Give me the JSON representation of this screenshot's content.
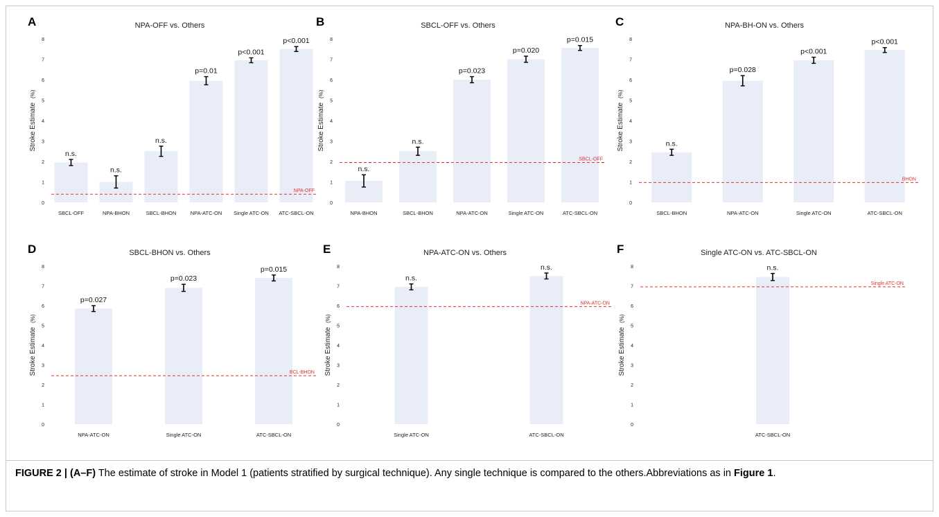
{
  "colors": {
    "bar": "#e8edf8",
    "reference_line": "#e03030",
    "error_bar": "#000000",
    "axis_text": "#222222"
  },
  "chart_data": [
    {
      "panel": "A",
      "type": "bar",
      "title": "NPA-OFF vs. Others",
      "ylabel": "Stroke Estimate",
      "ylabel_unit": "(%)",
      "ylim": [
        0,
        8
      ],
      "yticks": [
        "0",
        "1",
        "2",
        "3",
        "4",
        "5",
        "6",
        "7",
        "8"
      ],
      "categories": [
        "SBCL-OFF",
        "NPA-BHON",
        "SBCL-BHON",
        "NPA-ATC-ON",
        "Single ATC-ON",
        "ATC-SBCL-ON"
      ],
      "values": [
        1.95,
        1.0,
        2.5,
        5.95,
        6.95,
        7.5
      ],
      "errors": [
        0.15,
        0.3,
        0.25,
        0.2,
        0.12,
        0.12
      ],
      "annotations": [
        "n.s.",
        "n.s.",
        "n.s.",
        "p=0.01",
        "p<0.001",
        "p<0.001"
      ],
      "reference": {
        "value": 0.4,
        "label": "NPA-OFF"
      },
      "grid": false
    },
    {
      "panel": "B",
      "type": "bar",
      "title": "SBCL-OFF vs. Others",
      "ylabel": "Stroke Estimate",
      "ylabel_unit": "(%)",
      "ylim": [
        0,
        8
      ],
      "yticks": [
        "0",
        "1",
        "2",
        "3",
        "4",
        "5",
        "6",
        "7",
        "8"
      ],
      "categories": [
        "NPA-BHON",
        "SBCL-BHON",
        "NPA-ATC-ON",
        "Single ATC-ON",
        "ATC-SBCL-ON"
      ],
      "values": [
        1.05,
        2.5,
        6.0,
        7.0,
        7.55
      ],
      "errors": [
        0.3,
        0.2,
        0.15,
        0.15,
        0.12
      ],
      "annotations": [
        "n.s.",
        "n.s.",
        "p=0.023",
        "p=0.020",
        "p=0.015"
      ],
      "reference": {
        "value": 1.95,
        "label": "SBCL-OFF"
      },
      "grid": false
    },
    {
      "panel": "C",
      "type": "bar",
      "title": "NPA-BH-ON vs. Others",
      "ylabel": "Stroke Estimate",
      "ylabel_unit": "(%)",
      "ylim": [
        0,
        8
      ],
      "yticks": [
        "0",
        "1",
        "2",
        "3",
        "4",
        "5",
        "6",
        "7",
        "8"
      ],
      "categories": [
        "SBCL-BHON",
        "NPA-ATC-ON",
        "Single ATC-ON",
        "ATC-SBCL-ON"
      ],
      "values": [
        2.45,
        5.95,
        6.95,
        7.45
      ],
      "errors": [
        0.15,
        0.25,
        0.15,
        0.12
      ],
      "annotations": [
        "n.s.",
        "p=0.028",
        "p<0.001",
        "p<0.001"
      ],
      "reference": {
        "value": 0.97,
        "label": "BHON"
      },
      "grid": false
    },
    {
      "panel": "D",
      "type": "bar",
      "title": "SBCL-BHON vs. Others",
      "ylabel": "Stroke Estimate",
      "ylabel_unit": "(%)",
      "ylim": [
        0,
        8
      ],
      "yticks": [
        "0",
        "1",
        "2",
        "3",
        "4",
        "5",
        "6",
        "7",
        "8"
      ],
      "categories": [
        "NPA-ATC-ON",
        "Single ATC-ON",
        "ATC-SBCL-ON"
      ],
      "values": [
        5.85,
        6.9,
        7.4
      ],
      "errors": [
        0.15,
        0.18,
        0.15
      ],
      "annotations": [
        "p=0.027",
        "p=0.023",
        "p=0.015"
      ],
      "reference": {
        "value": 2.45,
        "label": "BCL-BHON"
      },
      "grid": false
    },
    {
      "panel": "E",
      "type": "bar",
      "title": "NPA-ATC-ON vs. Others",
      "ylabel": "Stroke Estimate",
      "ylabel_unit": "(%)",
      "ylim": [
        0,
        8
      ],
      "yticks": [
        "0",
        "1",
        "2",
        "3",
        "4",
        "5",
        "6",
        "7",
        "8"
      ],
      "categories": [
        "Single ATC-ON",
        "ATC-SBCL-ON"
      ],
      "values": [
        6.95,
        7.5
      ],
      "errors": [
        0.15,
        0.15
      ],
      "annotations": [
        "n.s.",
        "n.s."
      ],
      "reference": {
        "value": 5.95,
        "label": "NPA-ATC-ON"
      },
      "grid": false
    },
    {
      "panel": "F",
      "type": "bar",
      "title": "Single ATC-ON vs. ATC-SBCL-ON",
      "ylabel": "Stroke Estimate",
      "ylabel_unit": "(%)",
      "ylim": [
        0,
        8
      ],
      "yticks": [
        "0",
        "1",
        "2",
        "3",
        "4",
        "5",
        "6",
        "7",
        "8"
      ],
      "categories": [
        "ATC-SBCL-ON"
      ],
      "values": [
        7.45
      ],
      "errors": [
        0.18
      ],
      "annotations": [
        "n.s."
      ],
      "reference": {
        "value": 6.95,
        "label": "Single ATC-ON"
      },
      "grid": false
    }
  ],
  "caption": {
    "figure_label": "FIGURE 2 | (A–F)",
    "text": " The estimate of stroke in Model 1 (patients stratified by surgical technique). Any single technique is compared to the others.Abbreviations as in ",
    "ref": "Figure 1",
    "end": "."
  }
}
